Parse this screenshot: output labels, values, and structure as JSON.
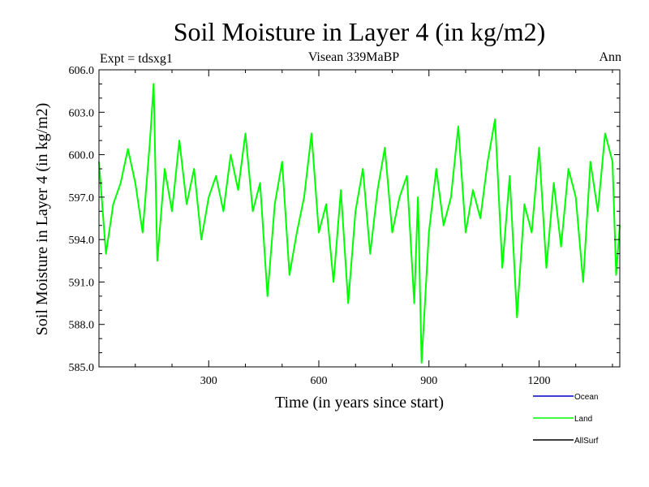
{
  "chart_data": {
    "type": "line",
    "title": "Soil Moisture in Layer 4 (in kg/m2)",
    "subtitle_left": "Expt = tdsxg1",
    "subtitle_center": "Visean 339MaBP",
    "subtitle_right": "Ann",
    "xlabel": "Time (in years since start)",
    "ylabel": "Soil Moisture in Layer 4 (in kg/m2)",
    "xlim": [
      1,
      1420
    ],
    "ylim": [
      585.0,
      606.0
    ],
    "xticks": [
      300,
      600,
      900,
      1200
    ],
    "xtick_labels": [
      "300",
      "600",
      "900",
      "1200"
    ],
    "yticks": [
      585.0,
      588.0,
      591.0,
      594.0,
      597.0,
      600.0,
      603.0,
      606.0
    ],
    "ytick_labels": [
      "585.0",
      "588.0",
      "591.0",
      "594.0",
      "597.0",
      "600.0",
      "603.0",
      "606.0"
    ],
    "grid": false,
    "legend_position": "bottom-right",
    "legend": [
      {
        "name": "Ocean",
        "color": "#0000cc"
      },
      {
        "name": "Land",
        "color": "#00ff00"
      },
      {
        "name": "AllSurf",
        "color": "#000000"
      }
    ],
    "series": [
      {
        "name": "Land",
        "color": "#00ff00",
        "x": [
          1,
          20,
          40,
          60,
          80,
          100,
          120,
          140,
          150,
          160,
          180,
          200,
          220,
          240,
          260,
          280,
          300,
          320,
          340,
          360,
          380,
          400,
          420,
          440,
          460,
          480,
          500,
          520,
          540,
          560,
          580,
          600,
          620,
          640,
          660,
          680,
          700,
          720,
          740,
          760,
          780,
          800,
          820,
          840,
          860,
          870,
          880,
          900,
          920,
          940,
          960,
          980,
          1000,
          1020,
          1040,
          1060,
          1080,
          1100,
          1120,
          1140,
          1160,
          1180,
          1200,
          1220,
          1240,
          1260,
          1280,
          1300,
          1320,
          1340,
          1360,
          1380,
          1400,
          1410,
          1420
        ],
        "values": [
          599.5,
          593.0,
          596.5,
          598.0,
          600.4,
          598.0,
          594.5,
          601.0,
          605.0,
          592.5,
          599.0,
          596.0,
          601.0,
          596.5,
          599.0,
          594.0,
          597.0,
          598.5,
          596.0,
          600.0,
          597.5,
          601.5,
          596.0,
          598.0,
          590.0,
          596.5,
          599.5,
          591.5,
          594.5,
          597.0,
          601.5,
          594.5,
          596.5,
          591.0,
          597.5,
          589.5,
          596.0,
          599.0,
          593.0,
          597.5,
          600.5,
          594.5,
          597.0,
          598.5,
          589.5,
          597.0,
          585.3,
          594.5,
          599.0,
          595.0,
          597.0,
          602.0,
          594.5,
          597.5,
          595.5,
          599.5,
          602.5,
          592.0,
          598.5,
          588.5,
          596.5,
          594.5,
          600.5,
          592.0,
          598.0,
          593.5,
          599.0,
          597.0,
          591.0,
          599.5,
          596.0,
          601.5,
          599.5,
          591.5,
          595.0
        ]
      },
      {
        "name": "Ocean",
        "color": "#0000cc",
        "x": [],
        "values": []
      },
      {
        "name": "AllSurf",
        "color": "#000000",
        "x": [],
        "values": []
      }
    ]
  }
}
